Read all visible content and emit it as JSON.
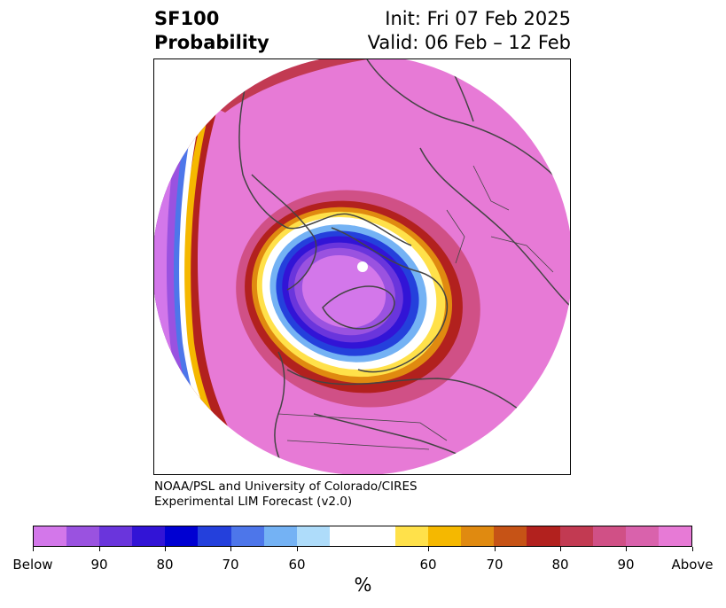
{
  "title": {
    "left_line1": "SF100",
    "left_line2": "Probability",
    "right_line1": "Init: Fri 07 Feb 2025",
    "right_line2": "Valid: 06 Feb – 12 Feb"
  },
  "credit": {
    "line1": "NOAA/PSL and University of Colorado/CIRES",
    "line2": "Experimental LIM Forecast (v2.0)"
  },
  "colorbar": {
    "unit": "%",
    "colors": [
      "#d377ea",
      "#9a52e0",
      "#6a35dc",
      "#3214d6",
      "#0000d2",
      "#2440dc",
      "#4d76ea",
      "#74b2f4",
      "#aedcfa",
      "#ffffff",
      "#ffe14a",
      "#f5b800",
      "#e08a10",
      "#c65316",
      "#b2211e",
      "#c23a52",
      "#d05086",
      "#d962ac",
      "#e77ad6"
    ],
    "ticks": [
      {
        "label": "Below"
      },
      {
        "label": "90"
      },
      {
        "label": "80"
      },
      {
        "label": "70"
      },
      {
        "label": "60"
      },
      {
        "label": "60"
      },
      {
        "label": "70"
      },
      {
        "label": "80"
      },
      {
        "label": "90"
      },
      {
        "label": "Above"
      }
    ]
  },
  "map": {
    "projection": "polar stereographic",
    "background_color": "#e77ad6",
    "coastline_color": "#444444"
  }
}
